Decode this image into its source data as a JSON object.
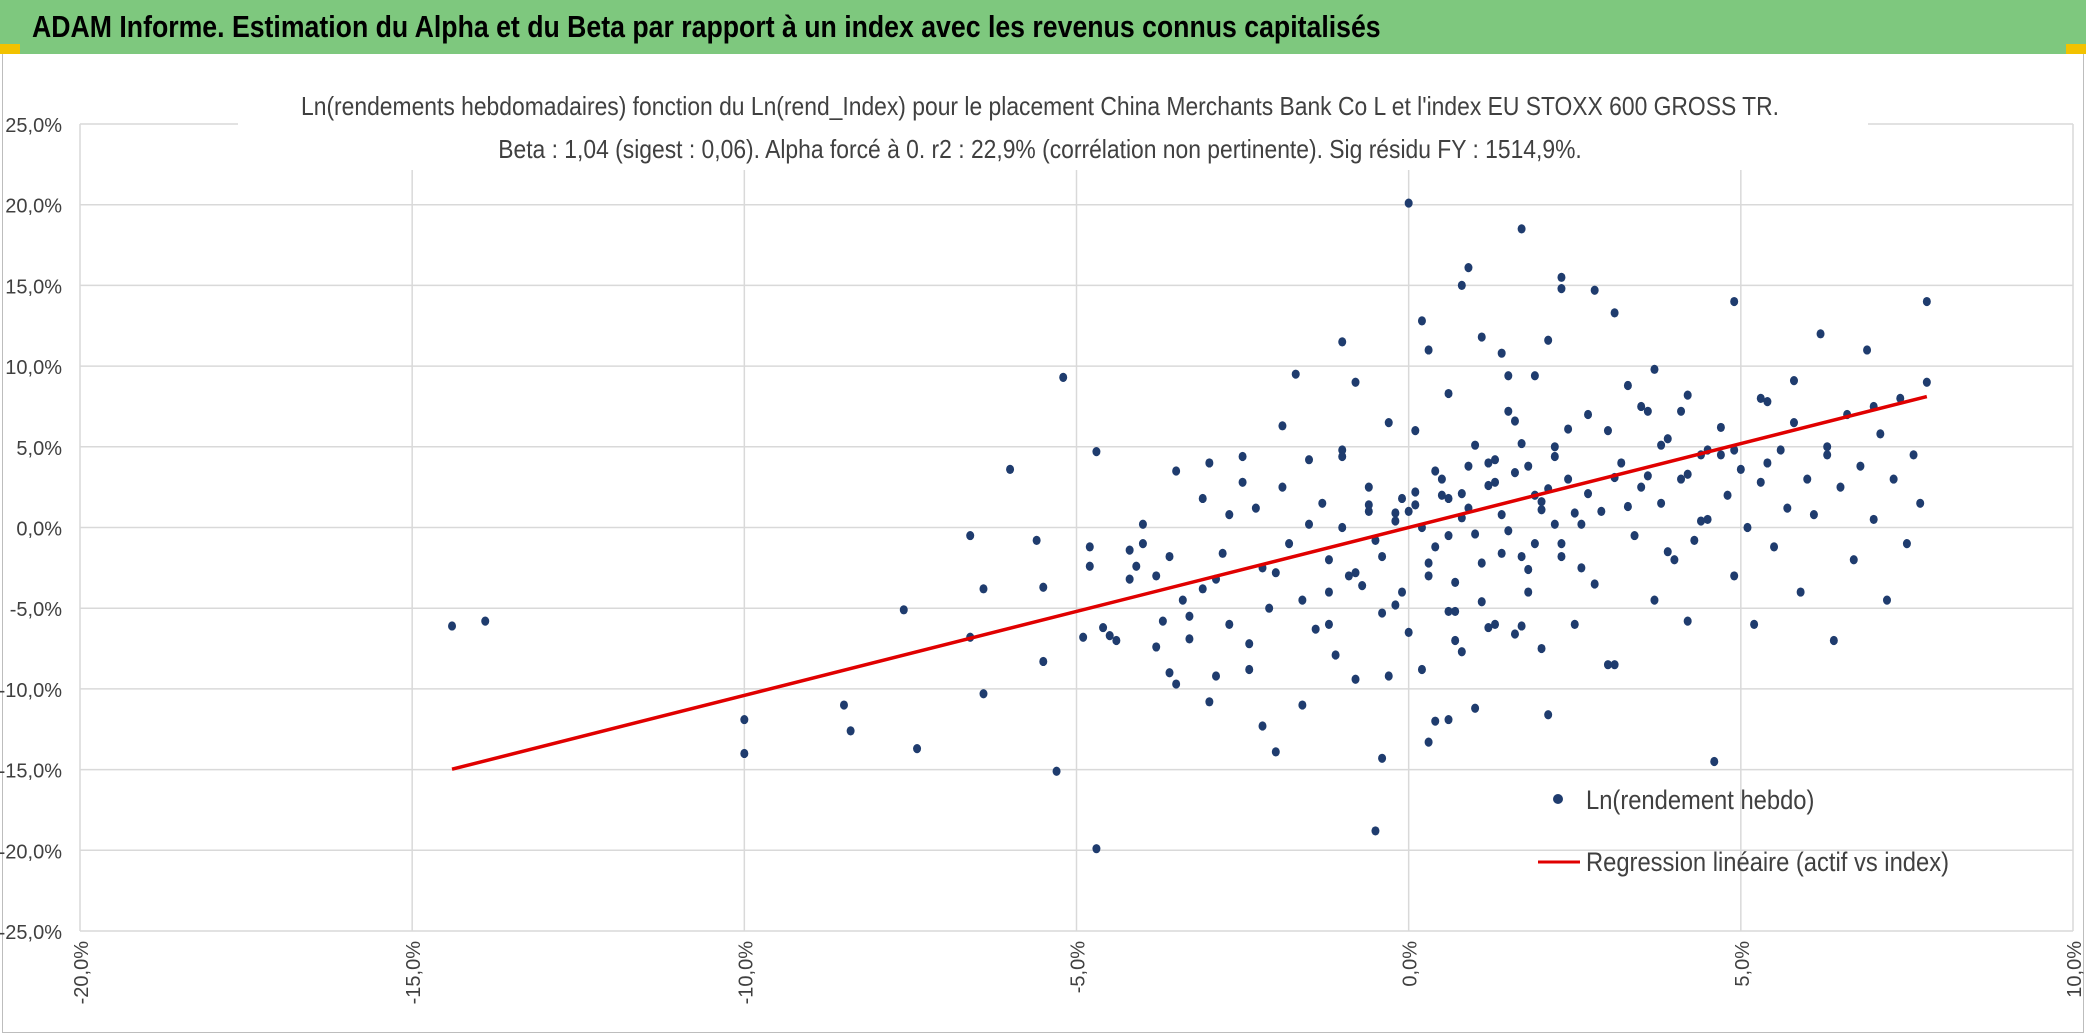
{
  "header": {
    "title": "ADAM Informe. Estimation du Alpha et du Beta par rapport à un index avec les revenus connus capitalisés"
  },
  "colors": {
    "header_bg": "#7ec87e",
    "corner_accent": "#f2c200",
    "points": "#1f3c6e",
    "regression": "#e00000",
    "grid": "#d9d9d9"
  },
  "chart_data": {
    "type": "scatter",
    "title": "Ln(rendements hebdomadaires) fonction du Ln(rend_Index) pour le placement China Merchants Bank Co L et l'index EU STOXX 600 GROSS TR.",
    "subtitle": "Beta : 1,04 (sigest : 0,06). Alpha forcé à 0. r2 : 22,9% (corrélation non pertinente). Sig résidu FY : 1514,9%.",
    "xlim": [
      -0.2,
      0.1
    ],
    "ylim": [
      -0.25,
      0.25
    ],
    "x_ticks": [
      -0.2,
      -0.15,
      -0.1,
      -0.05,
      0.0,
      0.05,
      0.1
    ],
    "x_tick_labels": [
      "-20,0%",
      "-15,0%",
      "-10,0%",
      "-5,0%",
      "0,0%",
      "5,0%",
      "10,0%"
    ],
    "y_ticks": [
      0.25,
      0.2,
      0.15,
      0.1,
      0.05,
      0.0,
      -0.05,
      -0.1,
      -0.15,
      -0.2,
      -0.25
    ],
    "y_tick_labels": [
      "25,0%",
      "20,0%",
      "15,0%",
      "10,0%",
      "5,0%",
      "0,0%",
      "-5,0%",
      "-10,0%",
      "-15,0%",
      "-20,0%",
      "-25,0%"
    ],
    "grid": true,
    "legend_position": "bottom-right",
    "beta": 1.04,
    "regression_x_range": [
      -0.144,
      0.078
    ],
    "series": [
      {
        "name": "Ln(rendement hebdo)",
        "kind": "points",
        "points": [
          [
            -0.144,
            -0.061
          ],
          [
            -0.139,
            -0.058
          ],
          [
            -0.1,
            -0.119
          ],
          [
            -0.1,
            -0.14
          ],
          [
            -0.085,
            -0.11
          ],
          [
            -0.084,
            -0.126
          ],
          [
            -0.076,
            -0.051
          ],
          [
            -0.074,
            -0.137
          ],
          [
            -0.066,
            -0.005
          ],
          [
            -0.066,
            -0.068
          ],
          [
            -0.064,
            -0.038
          ],
          [
            -0.064,
            -0.103
          ],
          [
            -0.06,
            0.036
          ],
          [
            -0.056,
            -0.008
          ],
          [
            -0.055,
            -0.037
          ],
          [
            -0.055,
            -0.083
          ],
          [
            -0.053,
            -0.151
          ],
          [
            -0.052,
            0.093
          ],
          [
            -0.047,
            0.047
          ],
          [
            -0.047,
            -0.199
          ],
          [
            -0.048,
            -0.012
          ],
          [
            -0.049,
            -0.068
          ],
          [
            -0.046,
            -0.062
          ],
          [
            -0.044,
            -0.07
          ],
          [
            -0.042,
            -0.014
          ],
          [
            -0.041,
            -0.024
          ],
          [
            -0.04,
            -0.01
          ],
          [
            -0.038,
            -0.03
          ],
          [
            -0.036,
            -0.018
          ],
          [
            -0.037,
            -0.058
          ],
          [
            -0.036,
            -0.09
          ],
          [
            -0.035,
            -0.097
          ],
          [
            -0.034,
            -0.045
          ],
          [
            -0.033,
            -0.069
          ],
          [
            -0.031,
            -0.038
          ],
          [
            -0.03,
            0.04
          ],
          [
            -0.03,
            -0.108
          ],
          [
            -0.029,
            -0.032
          ],
          [
            -0.028,
            -0.016
          ],
          [
            -0.027,
            -0.06
          ],
          [
            -0.025,
            0.028
          ],
          [
            -0.024,
            -0.088
          ],
          [
            -0.023,
            0.012
          ],
          [
            -0.022,
            -0.025
          ],
          [
            -0.021,
            -0.05
          ],
          [
            -0.02,
            -0.139
          ],
          [
            -0.019,
            0.025
          ],
          [
            -0.018,
            -0.01
          ],
          [
            -0.016,
            -0.045
          ],
          [
            -0.015,
            0.002
          ],
          [
            -0.014,
            -0.063
          ],
          [
            -0.012,
            -0.02
          ],
          [
            -0.011,
            -0.079
          ],
          [
            -0.01,
            0.048
          ],
          [
            -0.009,
            -0.03
          ],
          [
            -0.008,
            -0.094
          ],
          [
            -0.006,
            0.01
          ],
          [
            -0.005,
            -0.008
          ],
          [
            -0.005,
            -0.188
          ],
          [
            -0.004,
            -0.053
          ],
          [
            -0.003,
            -0.092
          ],
          [
            -0.002,
            0.009
          ],
          [
            -0.001,
            -0.04
          ],
          [
            0.0,
            -0.065
          ],
          [
            0.001,
            0.014
          ],
          [
            0.002,
            -0.088
          ],
          [
            0.003,
            -0.03
          ],
          [
            0.004,
            -0.12
          ],
          [
            0.005,
            0.02
          ],
          [
            0.006,
            -0.005
          ],
          [
            0.007,
            -0.052
          ],
          [
            0.008,
            -0.077
          ],
          [
            0.009,
            0.012
          ],
          [
            0.01,
            -0.112
          ],
          [
            0.011,
            -0.022
          ],
          [
            0.012,
            0.04
          ],
          [
            0.013,
            -0.06
          ],
          [
            0.014,
            0.008
          ],
          [
            0.015,
            0.094
          ],
          [
            0.016,
            0.066
          ],
          [
            0.017,
            -0.018
          ],
          [
            0.018,
            -0.04
          ],
          [
            0.019,
            0.02
          ],
          [
            0.02,
            -0.075
          ],
          [
            0.021,
            0.116
          ],
          [
            0.022,
            0.05
          ],
          [
            0.023,
            -0.01
          ],
          [
            0.024,
            0.03
          ],
          [
            0.025,
            -0.06
          ],
          [
            0.026,
            0.002
          ],
          [
            0.027,
            0.07
          ],
          [
            0.028,
            -0.035
          ],
          [
            0.029,
            0.01
          ],
          [
            0.03,
            0.06
          ],
          [
            0.031,
            -0.085
          ],
          [
            0.032,
            0.04
          ],
          [
            0.033,
            0.088
          ],
          [
            0.034,
            -0.005
          ],
          [
            0.035,
            0.025
          ],
          [
            0.036,
            0.072
          ],
          [
            0.037,
            -0.045
          ],
          [
            0.038,
            0.015
          ],
          [
            0.039,
            0.055
          ],
          [
            0.04,
            -0.02
          ],
          [
            0.041,
            0.03
          ],
          [
            0.042,
            0.082
          ],
          [
            0.043,
            -0.008
          ],
          [
            0.044,
            0.045
          ],
          [
            0.045,
            0.005
          ],
          [
            0.046,
            -0.145
          ],
          [
            0.047,
            0.062
          ],
          [
            0.048,
            0.02
          ],
          [
            0.049,
            -0.03
          ],
          [
            0.05,
            0.036
          ],
          [
            0.051,
            0.0
          ],
          [
            0.052,
            -0.06
          ],
          [
            0.053,
            0.028
          ],
          [
            0.054,
            0.078
          ],
          [
            0.055,
            -0.012
          ],
          [
            0.056,
            0.048
          ],
          [
            0.057,
            0.012
          ],
          [
            0.058,
            0.065
          ],
          [
            0.059,
            -0.04
          ],
          [
            0.06,
            0.03
          ],
          [
            0.061,
            0.008
          ],
          [
            0.062,
            0.12
          ],
          [
            0.063,
            0.05
          ],
          [
            0.064,
            -0.07
          ],
          [
            0.065,
            0.025
          ],
          [
            0.066,
            0.07
          ],
          [
            0.067,
            -0.02
          ],
          [
            0.068,
            0.038
          ],
          [
            0.069,
            0.11
          ],
          [
            0.07,
            0.005
          ],
          [
            0.071,
            0.058
          ],
          [
            0.072,
            -0.045
          ],
          [
            0.073,
            0.03
          ],
          [
            0.074,
            0.08
          ],
          [
            0.075,
            -0.01
          ],
          [
            0.076,
            0.045
          ],
          [
            0.077,
            0.015
          ],
          [
            0.078,
            0.09
          ],
          [
            0.078,
            0.14
          ],
          [
            0.07,
            0.075
          ],
          [
            0.063,
            0.045
          ],
          [
            0.058,
            0.091
          ],
          [
            0.054,
            0.04
          ],
          [
            0.053,
            0.08
          ],
          [
            0.049,
            0.048
          ],
          [
            0.049,
            0.14
          ],
          [
            0.047,
            0.045
          ],
          [
            0.045,
            0.048
          ],
          [
            0.044,
            0.004
          ],
          [
            0.042,
            0.033
          ],
          [
            0.042,
            -0.058
          ],
          [
            0.041,
            0.072
          ],
          [
            0.039,
            -0.015
          ],
          [
            0.038,
            0.051
          ],
          [
            0.037,
            0.098
          ],
          [
            0.036,
            0.032
          ],
          [
            0.035,
            0.075
          ],
          [
            0.033,
            0.013
          ],
          [
            0.031,
            0.031
          ],
          [
            0.031,
            0.133
          ],
          [
            0.03,
            -0.085
          ],
          [
            0.028,
            0.147
          ],
          [
            0.027,
            0.021
          ],
          [
            0.026,
            -0.025
          ],
          [
            0.025,
            0.009
          ],
          [
            0.024,
            0.061
          ],
          [
            0.023,
            0.155
          ],
          [
            0.023,
            0.148
          ],
          [
            0.022,
            0.044
          ],
          [
            0.021,
            -0.116
          ],
          [
            0.02,
            0.011
          ],
          [
            0.019,
            0.094
          ],
          [
            0.018,
            0.038
          ],
          [
            0.017,
            -0.061
          ],
          [
            0.017,
            0.185
          ],
          [
            0.016,
            -0.066
          ],
          [
            0.015,
            0.072
          ],
          [
            0.014,
            0.108
          ],
          [
            0.013,
            0.028
          ],
          [
            0.012,
            -0.062
          ],
          [
            0.011,
            0.118
          ],
          [
            0.01,
            0.051
          ],
          [
            0.009,
            0.161
          ],
          [
            0.008,
            0.15
          ],
          [
            0.008,
            0.021
          ],
          [
            0.007,
            -0.07
          ],
          [
            0.006,
            -0.052
          ],
          [
            0.006,
            0.083
          ],
          [
            0.006,
            -0.119
          ],
          [
            0.004,
            0.035
          ],
          [
            0.003,
            0.11
          ],
          [
            0.003,
            -0.133
          ],
          [
            0.002,
            0.128
          ],
          [
            0.001,
            0.06
          ],
          [
            0.0,
            0.201
          ],
          [
            -0.001,
            0.018
          ],
          [
            -0.002,
            -0.048
          ],
          [
            -0.003,
            0.065
          ],
          [
            -0.004,
            -0.143
          ],
          [
            -0.006,
            0.025
          ],
          [
            -0.007,
            -0.036
          ],
          [
            -0.008,
            0.09
          ],
          [
            -0.01,
            0.044
          ],
          [
            -0.01,
            0.115
          ],
          [
            -0.012,
            -0.06
          ],
          [
            -0.013,
            0.015
          ],
          [
            -0.015,
            0.042
          ],
          [
            -0.016,
            -0.11
          ],
          [
            -0.017,
            0.095
          ],
          [
            -0.019,
            0.063
          ],
          [
            -0.02,
            -0.028
          ],
          [
            -0.022,
            -0.123
          ],
          [
            -0.024,
            -0.072
          ],
          [
            -0.025,
            0.044
          ],
          [
            -0.027,
            0.008
          ],
          [
            -0.029,
            -0.092
          ],
          [
            -0.031,
            0.018
          ],
          [
            -0.033,
            -0.055
          ],
          [
            -0.035,
            0.035
          ],
          [
            -0.038,
            -0.074
          ],
          [
            -0.04,
            0.002
          ],
          [
            -0.042,
            -0.032
          ],
          [
            -0.045,
            -0.067
          ],
          [
            -0.048,
            -0.024
          ],
          [
            0.0,
            0.01
          ],
          [
            0.002,
            0.0
          ],
          [
            0.004,
            -0.012
          ],
          [
            0.006,
            0.018
          ],
          [
            0.008,
            0.006
          ],
          [
            0.01,
            -0.004
          ],
          [
            0.012,
            0.026
          ],
          [
            0.014,
            -0.016
          ],
          [
            0.016,
            0.034
          ],
          [
            0.018,
            -0.026
          ],
          [
            0.02,
            0.016
          ],
          [
            0.022,
            0.002
          ],
          [
            -0.002,
            0.004
          ],
          [
            -0.004,
            -0.018
          ],
          [
            -0.006,
            0.014
          ],
          [
            -0.008,
            -0.028
          ],
          [
            -0.01,
            0.0
          ],
          [
            -0.012,
            -0.04
          ],
          [
            0.001,
            0.022
          ],
          [
            0.003,
            -0.022
          ],
          [
            0.005,
            0.03
          ],
          [
            0.007,
            -0.034
          ],
          [
            0.009,
            0.038
          ],
          [
            0.011,
            -0.046
          ],
          [
            0.013,
            0.042
          ],
          [
            0.015,
            -0.002
          ],
          [
            0.017,
            0.052
          ],
          [
            0.019,
            -0.01
          ],
          [
            0.021,
            0.024
          ],
          [
            0.023,
            -0.018
          ]
        ]
      },
      {
        "name": "Regression linéaire (actif vs index)",
        "kind": "line"
      }
    ]
  }
}
